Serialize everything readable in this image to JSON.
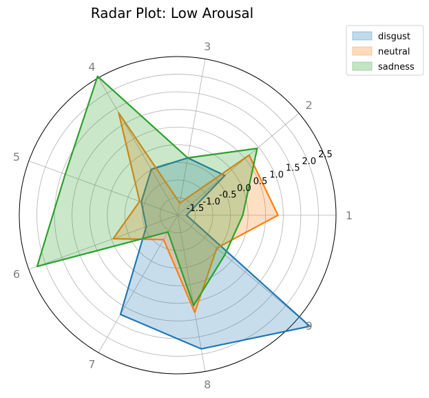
{
  "chart_data": {
    "type": "radar",
    "title": "Radar Plot: Low Arousal",
    "categories": [
      "1",
      "2",
      "3",
      "4",
      "5",
      "6",
      "7",
      "8",
      "9"
    ],
    "r_ticks": [
      "-1.5",
      "-1.0",
      "-0.5",
      "0.0",
      "0.5",
      "1.0",
      "1.5",
      "2.0",
      "2.5"
    ],
    "rlim": [
      -2.0,
      2.5
    ],
    "grid": true,
    "legend_position": "top-right, outside plot",
    "series": [
      {
        "name": "disgust",
        "color": "#1f77b4",
        "values": [
          -1.75,
          -0.25,
          -0.35,
          -0.5,
          -0.9,
          -1.05,
          1.25,
          1.85,
          2.9
        ]
      },
      {
        "name": "neutral",
        "color": "#ff7f0e",
        "values": [
          0.85,
          0.65,
          -1.65,
          1.35,
          -0.85,
          -0.05,
          -1.2,
          0.8,
          -0.55
        ]
      },
      {
        "name": "sadness",
        "color": "#2ca02c",
        "values": [
          -0.15,
          0.95,
          -0.35,
          2.55,
          1.4,
          2.25,
          -1.45,
          0.6,
          -0.25
        ]
      }
    ]
  }
}
